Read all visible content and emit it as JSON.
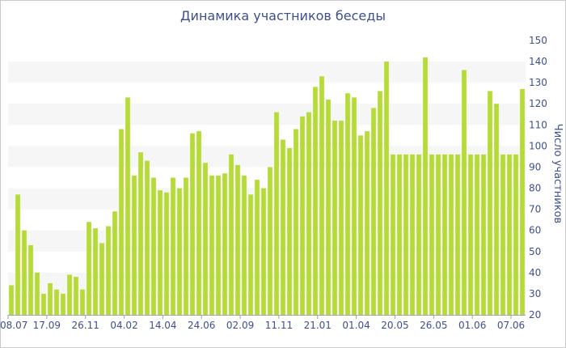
{
  "chart_data": {
    "type": "bar",
    "title": "Динамика участников беседы",
    "ylabel": "Число участников",
    "xlabel": "",
    "ylim": [
      20,
      150
    ],
    "y_ticks": [
      20,
      30,
      40,
      50,
      60,
      70,
      80,
      90,
      100,
      110,
      120,
      130,
      140,
      150
    ],
    "x_tick_labels": [
      "08.07",
      "17.09",
      "26.11",
      "04.02",
      "14.04",
      "24.06",
      "02.09",
      "11.11",
      "21.01",
      "01.04",
      "20.05",
      "26.05",
      "01.06",
      "07.06"
    ],
    "grid": "horizontal alternating bands",
    "values": [
      34,
      77,
      60,
      53,
      40,
      30,
      35,
      32,
      30,
      39,
      38,
      32,
      64,
      61,
      54,
      62,
      69,
      108,
      123,
      86,
      97,
      93,
      85,
      79,
      78,
      85,
      80,
      85,
      106,
      107,
      92,
      86,
      86,
      87,
      96,
      91,
      86,
      77,
      84,
      80,
      90,
      116,
      103,
      99,
      108,
      114,
      116,
      128,
      133,
      122,
      112,
      112,
      125,
      123,
      105,
      107,
      118,
      126,
      140,
      96,
      96,
      96,
      96,
      96,
      142,
      96,
      96,
      96,
      96,
      96,
      136,
      96,
      96,
      96,
      126,
      120,
      96,
      96,
      96,
      127
    ],
    "bar_color": "#b5dc34",
    "band_color": "#f6f6f6",
    "axis_text_color": "#3e4f8f"
  }
}
